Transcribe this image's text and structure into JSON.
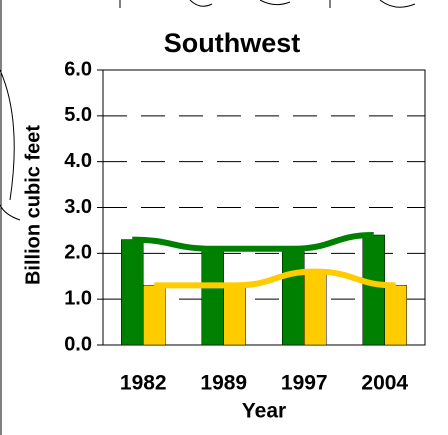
{
  "chart_data": {
    "type": "bar",
    "title": "Southwest",
    "y_label": "Billion cubic feet",
    "x_label": "Year",
    "categories": [
      "1982",
      "1989",
      "1997",
      "2004"
    ],
    "series": [
      {
        "name": null,
        "color": "#008000",
        "values": [
          2.3,
          2.1,
          2.1,
          2.4
        ]
      },
      {
        "name": null,
        "color": "#ffcc00",
        "values": [
          1.3,
          1.3,
          1.6,
          1.3
        ]
      }
    ],
    "ylim": [
      0,
      6
    ],
    "yticks": [
      {
        "value": 0,
        "label": "0.0"
      },
      {
        "value": 1,
        "label": "1.0"
      },
      {
        "value": 2,
        "label": "2.0"
      },
      {
        "value": 3,
        "label": "3.0"
      },
      {
        "value": 4,
        "label": "4.0"
      },
      {
        "value": 5,
        "label": "5.0"
      },
      {
        "value": 6,
        "label": "6.0"
      }
    ],
    "grid": true
  }
}
